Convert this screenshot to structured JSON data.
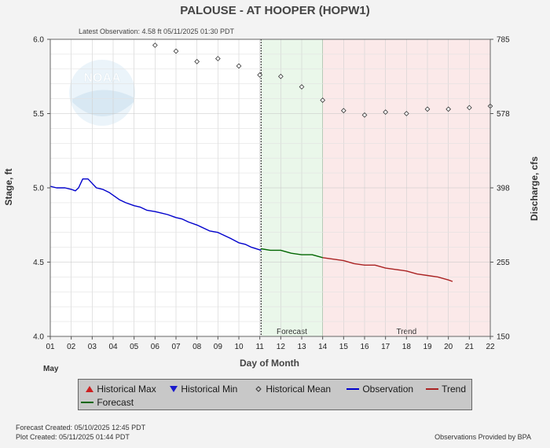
{
  "chart_data": {
    "type": "line",
    "title": "PALOUSE - AT HOOPER  (HOPW1)",
    "subtitle": "Latest Observation: 4.58 ft 05/11/2025 01:30 PDT",
    "xlabel": "Day of Month",
    "x_month_label": "May",
    "ylabel": "Stage, ft",
    "ylabel_right": "Discharge, cfs",
    "xlim": [
      1,
      22
    ],
    "ylim": [
      4.0,
      6.0
    ],
    "x_ticks": [
      "01",
      "02",
      "03",
      "04",
      "05",
      "06",
      "07",
      "08",
      "09",
      "10",
      "11",
      "12",
      "13",
      "14",
      "15",
      "16",
      "17",
      "18",
      "19",
      "20",
      "21",
      "22"
    ],
    "y_ticks": [
      "4.0",
      "4.5",
      "5.0",
      "5.5",
      "6.0"
    ],
    "y_ticks_values": [
      4.0,
      4.5,
      5.0,
      5.5,
      6.0
    ],
    "right_ticks": [
      {
        "label": "150",
        "stage": 4.0
      },
      {
        "label": "255",
        "stage": 4.5
      },
      {
        "label": "398",
        "stage": 5.0
      },
      {
        "label": "578",
        "stage": 5.5
      },
      {
        "label": "785",
        "stage": 6.0
      }
    ],
    "grid": true,
    "current_time_x": 11.06,
    "regions": [
      {
        "name": "Forecast",
        "x": [
          11.06,
          14.0
        ],
        "color": "#eaf7ea",
        "label": "Forecast"
      },
      {
        "name": "Trend",
        "x": [
          14.0,
          22.0
        ],
        "color": "#fbe9e9",
        "label": "Trend"
      }
    ],
    "series": [
      {
        "name": "Observation",
        "color": "#0000cc",
        "points": [
          [
            1.0,
            5.01
          ],
          [
            1.3,
            5.0
          ],
          [
            1.7,
            5.0
          ],
          [
            2.0,
            4.99
          ],
          [
            2.2,
            4.98
          ],
          [
            2.35,
            5.0
          ],
          [
            2.55,
            5.06
          ],
          [
            2.8,
            5.06
          ],
          [
            3.0,
            5.03
          ],
          [
            3.2,
            5.0
          ],
          [
            3.5,
            4.99
          ],
          [
            3.8,
            4.97
          ],
          [
            4.0,
            4.95
          ],
          [
            4.3,
            4.92
          ],
          [
            4.6,
            4.9
          ],
          [
            5.0,
            4.88
          ],
          [
            5.3,
            4.87
          ],
          [
            5.6,
            4.85
          ],
          [
            6.0,
            4.84
          ],
          [
            6.3,
            4.83
          ],
          [
            6.6,
            4.82
          ],
          [
            7.0,
            4.8
          ],
          [
            7.3,
            4.79
          ],
          [
            7.6,
            4.77
          ],
          [
            8.0,
            4.75
          ],
          [
            8.3,
            4.73
          ],
          [
            8.6,
            4.71
          ],
          [
            9.0,
            4.7
          ],
          [
            9.3,
            4.68
          ],
          [
            9.6,
            4.66
          ],
          [
            10.0,
            4.63
          ],
          [
            10.3,
            4.62
          ],
          [
            10.6,
            4.6
          ],
          [
            11.06,
            4.58
          ]
        ]
      },
      {
        "name": "Forecast",
        "color": "#006600",
        "points": [
          [
            11.06,
            4.59
          ],
          [
            11.5,
            4.58
          ],
          [
            12.0,
            4.58
          ],
          [
            12.5,
            4.56
          ],
          [
            13.0,
            4.55
          ],
          [
            13.5,
            4.55
          ],
          [
            14.0,
            4.53
          ]
        ]
      },
      {
        "name": "Trend",
        "color": "#aa2222",
        "points": [
          [
            14.0,
            4.53
          ],
          [
            14.5,
            4.52
          ],
          [
            15.0,
            4.51
          ],
          [
            15.5,
            4.49
          ],
          [
            16.0,
            4.48
          ],
          [
            16.5,
            4.48
          ],
          [
            17.0,
            4.46
          ],
          [
            17.5,
            4.45
          ],
          [
            18.0,
            4.44
          ],
          [
            18.5,
            4.42
          ],
          [
            19.0,
            4.41
          ],
          [
            19.5,
            4.4
          ],
          [
            20.0,
            4.38
          ],
          [
            20.2,
            4.37
          ]
        ]
      },
      {
        "name": "Historical Mean",
        "color": "#333333",
        "marker": "diamond",
        "points": [
          [
            6.0,
            5.96
          ],
          [
            7.0,
            5.92
          ],
          [
            8.0,
            5.85
          ],
          [
            9.0,
            5.87
          ],
          [
            10.0,
            5.82
          ],
          [
            11.0,
            5.76
          ],
          [
            12.0,
            5.75
          ],
          [
            13.0,
            5.68
          ],
          [
            14.0,
            5.59
          ],
          [
            15.0,
            5.52
          ],
          [
            16.0,
            5.49
          ],
          [
            17.0,
            5.51
          ],
          [
            18.0,
            5.5
          ],
          [
            19.0,
            5.53
          ],
          [
            20.0,
            5.53
          ],
          [
            21.0,
            5.54
          ],
          [
            22.0,
            5.55
          ]
        ]
      }
    ],
    "legend": [
      {
        "label": "Historical Max",
        "symbol": "triangle-up",
        "color": "#cc2222"
      },
      {
        "label": "Historical Min",
        "symbol": "triangle-down",
        "color": "#1a1acc"
      },
      {
        "label": "Historical Mean",
        "symbol": "diamond",
        "color": "#333333"
      },
      {
        "label": "Observation",
        "symbol": "line",
        "color": "#0000cc"
      },
      {
        "label": "Trend",
        "symbol": "line",
        "color": "#aa2222"
      },
      {
        "label": "Forecast",
        "symbol": "line",
        "color": "#006600"
      }
    ],
    "watermark": "NOAA"
  },
  "footer": {
    "forecast_created": "Forecast Created: 05/10/2025 12:45 PDT",
    "plot_created": "Plot Created: 05/11/2025 01:44 PDT",
    "provider": "Observations Provided by BPA"
  }
}
